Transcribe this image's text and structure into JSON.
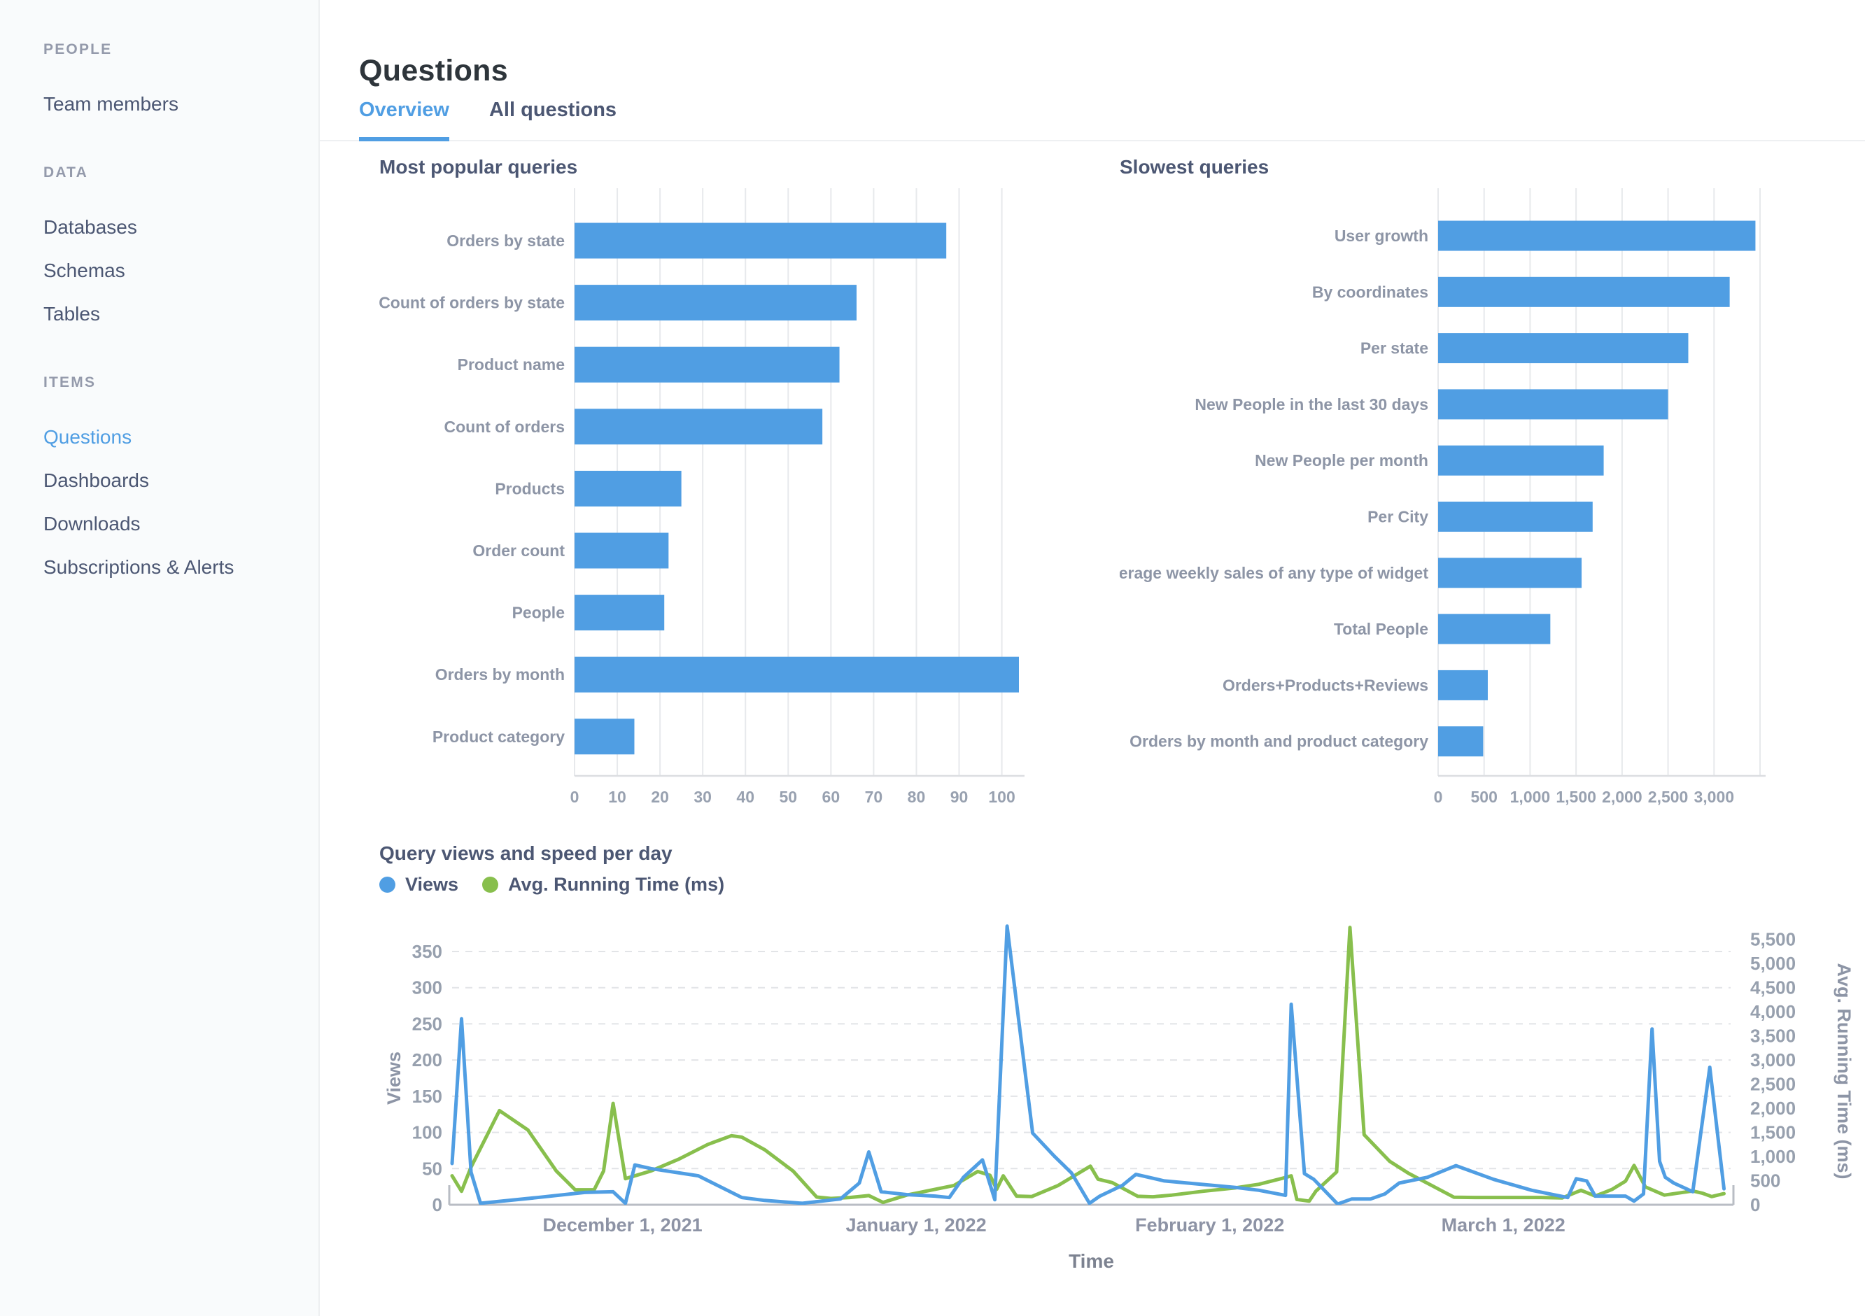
{
  "colors": {
    "brand_blue": "#509EE3",
    "green": "#88BF4D",
    "text_dark": "#2E353B",
    "text_medium": "#4C5773",
    "text_light": "#949AAB",
    "grid": "#E7E9EC",
    "axis": "#B9BDC4"
  },
  "sidebar": {
    "sections": [
      {
        "header": "PEOPLE",
        "items": [
          {
            "label": "Team members",
            "active": false
          }
        ]
      },
      {
        "header": "DATA",
        "items": [
          {
            "label": "Databases",
            "active": false
          },
          {
            "label": "Schemas",
            "active": false
          },
          {
            "label": "Tables",
            "active": false
          }
        ]
      },
      {
        "header": "ITEMS",
        "items": [
          {
            "label": "Questions",
            "active": true
          },
          {
            "label": "Dashboards",
            "active": false
          },
          {
            "label": "Downloads",
            "active": false
          },
          {
            "label": "Subscriptions & Alerts",
            "active": false
          }
        ]
      }
    ]
  },
  "header": {
    "title": "Questions",
    "tabs": [
      {
        "label": "Overview",
        "active": true
      },
      {
        "label": "All questions",
        "active": false
      }
    ]
  },
  "chart_data": [
    {
      "type": "bar",
      "orientation": "horizontal",
      "title": "Most popular queries",
      "categories": [
        "Orders by state",
        "Count of orders by state",
        "Product name",
        "Count of orders",
        "Products",
        "Order count",
        "People",
        "Orders by month",
        "Product category"
      ],
      "values": [
        87,
        66,
        62,
        58,
        25,
        22,
        21,
        104,
        14
      ],
      "xlabel": "",
      "ylabel": "",
      "xlim": [
        0,
        104
      ],
      "tick_step": 10,
      "label_max": 100,
      "grid": "on"
    },
    {
      "type": "bar",
      "orientation": "horizontal",
      "title": "Slowest queries",
      "categories": [
        "User growth",
        "By coordinates",
        "Per state",
        "New People in the last 30 days",
        "New People per month",
        "Per City",
        "Average weekly sales of any type of widget",
        "Total People",
        "Orders+Products+Reviews",
        "Orders by month and product category"
      ],
      "values": [
        3450,
        3170,
        2720,
        2500,
        1800,
        1680,
        1560,
        1220,
        540,
        490
      ],
      "xlabel": "",
      "ylabel": "",
      "xlim": [
        0,
        3500
      ],
      "tick_step": 500,
      "label_max": 3000,
      "grid": "on"
    },
    {
      "type": "line",
      "title": "Query views and speed per day",
      "xlabel": "Time",
      "x_domain_days": [
        0,
        135
      ],
      "x_ticks": [
        {
          "day": 18,
          "label": "December 1, 2021"
        },
        {
          "day": 49,
          "label": "January 1, 2022"
        },
        {
          "day": 80,
          "label": "February 1, 2022"
        },
        {
          "day": 111,
          "label": "March 1, 2022"
        }
      ],
      "y_left": {
        "label": "Views",
        "min": 0,
        "max": 350,
        "tick_step": 50
      },
      "y_right": {
        "label": "Avg. Running Time (ms)",
        "min": 0,
        "max": 5500,
        "tick_step": 500
      },
      "grid": "horizontal-dashed",
      "legend_position": "top",
      "series": [
        {
          "name": "Views",
          "axis": "left",
          "color": "#509EE3",
          "points": [
            [
              0,
              57
            ],
            [
              1,
              257
            ],
            [
              2,
              45
            ],
            [
              3,
              2
            ],
            [
              9,
              10
            ],
            [
              14,
              17
            ],
            [
              17,
              18
            ],
            [
              18.3,
              2
            ],
            [
              19.3,
              55
            ],
            [
              21,
              50
            ],
            [
              26,
              40
            ],
            [
              30.6,
              10
            ],
            [
              33,
              6
            ],
            [
              37,
              2
            ],
            [
              41,
              8
            ],
            [
              43,
              30
            ],
            [
              44,
              73
            ],
            [
              45.3,
              18
            ],
            [
              48,
              14
            ],
            [
              51,
              12
            ],
            [
              52.5,
              10
            ],
            [
              54,
              38
            ],
            [
              56,
              62
            ],
            [
              57.3,
              7
            ],
            [
              58.6,
              385
            ],
            [
              61.3,
              99
            ],
            [
              63.6,
              67
            ],
            [
              65.4,
              44
            ],
            [
              67.3,
              2
            ],
            [
              68.4,
              12
            ],
            [
              70.8,
              27
            ],
            [
              72.2,
              42
            ],
            [
              75.2,
              33
            ],
            [
              79.3,
              28
            ],
            [
              82.7,
              24
            ],
            [
              85.2,
              20
            ],
            [
              88,
              13
            ],
            [
              88.6,
              277
            ],
            [
              90,
              43
            ],
            [
              91,
              35
            ],
            [
              93.5,
              1
            ],
            [
              95,
              8
            ],
            [
              97,
              8
            ],
            [
              98.5,
              15
            ],
            [
              100,
              30
            ],
            [
              103,
              38
            ],
            [
              106,
              54
            ],
            [
              110,
              35
            ],
            [
              114,
              20
            ],
            [
              117.8,
              10
            ],
            [
              118.7,
              36
            ],
            [
              119.8,
              33
            ],
            [
              120.7,
              12
            ],
            [
              123.9,
              12
            ],
            [
              124.8,
              5
            ],
            [
              125.8,
              15
            ],
            [
              126.7,
              243
            ],
            [
              127.5,
              60
            ],
            [
              128.1,
              38
            ],
            [
              129,
              30
            ],
            [
              131,
              18
            ],
            [
              132.8,
              190
            ],
            [
              134.3,
              22
            ]
          ]
        },
        {
          "name": "Avg. Running Time (ms)",
          "axis": "right",
          "color": "#88BF4D",
          "points": [
            [
              0,
              600
            ],
            [
              1,
              280
            ],
            [
              2,
              780
            ],
            [
              5,
              1950
            ],
            [
              8,
              1550
            ],
            [
              11,
              700
            ],
            [
              13,
              310
            ],
            [
              15,
              310
            ],
            [
              16,
              700
            ],
            [
              17,
              2100
            ],
            [
              18.3,
              540
            ],
            [
              21,
              700
            ],
            [
              24,
              950
            ],
            [
              27,
              1250
            ],
            [
              29.5,
              1430
            ],
            [
              30.6,
              1400
            ],
            [
              33,
              1140
            ],
            [
              36,
              700
            ],
            [
              38.5,
              160
            ],
            [
              40,
              130
            ],
            [
              42,
              150
            ],
            [
              44,
              190
            ],
            [
              45.5,
              50
            ],
            [
              48,
              200
            ],
            [
              51,
              320
            ],
            [
              53,
              400
            ],
            [
              55.5,
              690
            ],
            [
              56.8,
              610
            ],
            [
              57.5,
              320
            ],
            [
              58.2,
              600
            ],
            [
              59.6,
              180
            ],
            [
              61.2,
              170
            ],
            [
              64,
              400
            ],
            [
              67.4,
              800
            ],
            [
              68.2,
              530
            ],
            [
              69.7,
              460
            ],
            [
              72.4,
              175
            ],
            [
              74,
              165
            ],
            [
              76,
              200
            ],
            [
              79.3,
              280
            ],
            [
              82.7,
              350
            ],
            [
              85.2,
              425
            ],
            [
              88.1,
              570
            ],
            [
              88.6,
              600
            ],
            [
              89.2,
              110
            ],
            [
              90.5,
              75
            ],
            [
              91.2,
              280
            ],
            [
              93.4,
              680
            ],
            [
              94.8,
              5745
            ],
            [
              96.3,
              1450
            ],
            [
              99,
              900
            ],
            [
              101,
              650
            ],
            [
              103,
              445
            ],
            [
              105.8,
              155
            ],
            [
              108,
              150
            ],
            [
              110,
              150
            ],
            [
              113,
              150
            ],
            [
              115,
              150
            ],
            [
              117.2,
              140
            ],
            [
              119.2,
              300
            ],
            [
              120.7,
              180
            ],
            [
              122.5,
              320
            ],
            [
              123.9,
              490
            ],
            [
              124.8,
              815
            ],
            [
              126,
              370
            ],
            [
              128,
              200
            ],
            [
              131,
              285
            ],
            [
              132,
              240
            ],
            [
              133,
              170
            ],
            [
              134.3,
              230
            ]
          ]
        }
      ]
    }
  ]
}
